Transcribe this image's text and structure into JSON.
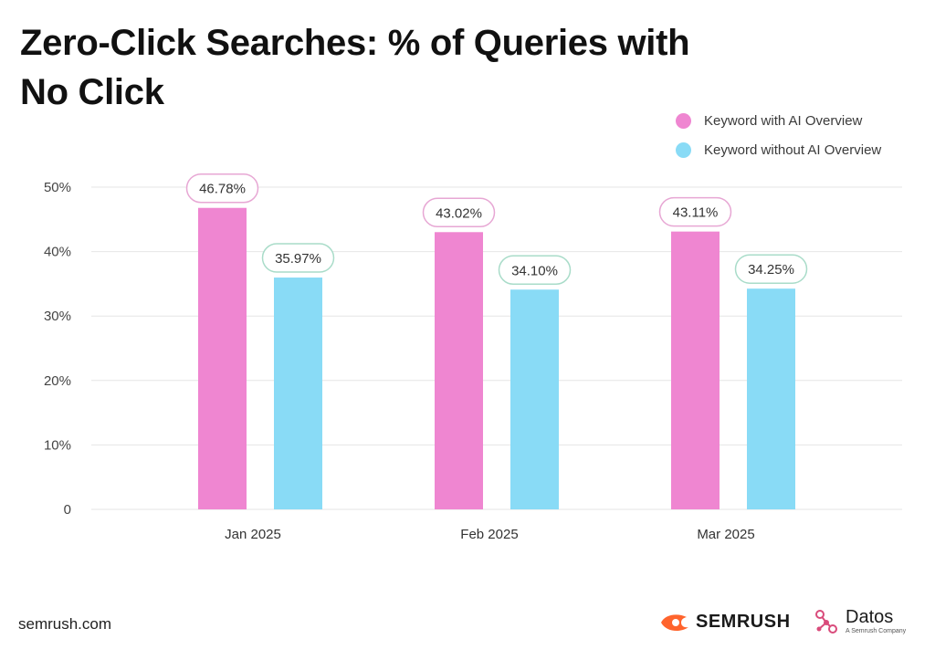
{
  "title": "Zero-Click Searches: % of Queries with No Click",
  "legend": [
    {
      "label": "Keyword with AI Overview",
      "color": "#ef86d1"
    },
    {
      "label": "Keyword without AI Overview",
      "color": "#89dbf6"
    }
  ],
  "chart_data": {
    "type": "bar",
    "title": "Zero-Click Searches: % of Queries with No Click",
    "categories": [
      "Jan 2025",
      "Feb 2025",
      "Mar 2025"
    ],
    "series": [
      {
        "name": "Keyword with AI Overview",
        "values": [
          46.78,
          43.02,
          43.11
        ],
        "labels": [
          "46.78%",
          "43.02%",
          "43.11%"
        ],
        "color": "#ef86d1",
        "label_border": "#e7a7d4"
      },
      {
        "name": "Keyword without AI Overview",
        "values": [
          35.97,
          34.1,
          34.25
        ],
        "labels": [
          "35.97%",
          "34.10%",
          "34.25%"
        ],
        "color": "#89dbf6",
        "label_border": "#a9dcc9"
      }
    ],
    "y_ticks": [
      0,
      10,
      20,
      30,
      40,
      50
    ],
    "y_tick_labels": [
      "0",
      "10%",
      "20%",
      "30%",
      "40%",
      "50%"
    ],
    "ylim": [
      0,
      50
    ],
    "grid": true,
    "legend_position": "top-right"
  },
  "footer": {
    "site": "semrush.com",
    "semrush_logo": "SEMRUSH",
    "datos_logo": "Datos",
    "datos_tagline": "A Semrush Company"
  }
}
